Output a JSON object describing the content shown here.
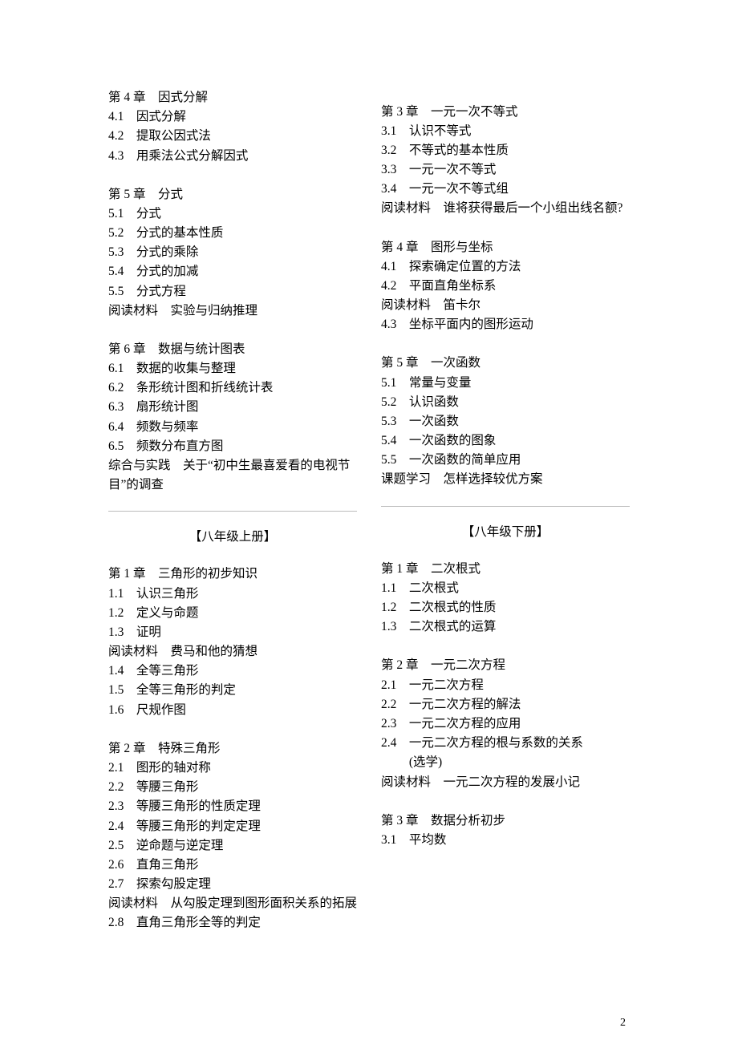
{
  "left": {
    "ch4": {
      "title": "第 4 章　因式分解",
      "s1": "4.1　因式分解",
      "s2": "4.2　提取公因式法",
      "s3": "4.3　用乘法公式分解因式"
    },
    "ch5": {
      "title": "第 5 章　分式",
      "s1": "5.1　分式",
      "s2": "5.2　分式的基本性质",
      "s3": "5.3　分式的乘除",
      "s4": "5.4　分式的加减",
      "s5": "5.5　分式方程",
      "reading": "阅读材料　实验与归纳推理"
    },
    "ch6": {
      "title": "第 6 章　数据与统计图表",
      "s1": "6.1　数据的收集与整理",
      "s2": "6.2　条形统计图和折线统计表",
      "s3": "6.3　扇形统计图",
      "s4": "6.4　频数与频率",
      "s5": "6.5　频数分布直方图",
      "practice": "综合与实践　关于“初中生最喜爱看的电视节目”的调查"
    },
    "volumeA": "【八年级上册】",
    "ch1a": {
      "title": "第 1 章　三角形的初步知识",
      "s1": "1.1　认识三角形",
      "s2": "1.2　定义与命题",
      "s3": "1.3　证明",
      "reading": "阅读材料　费马和他的猜想",
      "s4": "1.4　全等三角形",
      "s5": "1.5　全等三角形的判定",
      "s6": "1.6　尺规作图"
    },
    "ch2a": {
      "title": "第 2 章　特殊三角形",
      "s1": "2.1　图形的轴对称",
      "s2": "2.2　等腰三角形",
      "s3": "2.3　等腰三角形的性质定理",
      "s4": "2.4　等腰三角形的判定定理",
      "s5": "2.5　逆命题与逆定理",
      "s6": "2.6　直角三角形",
      "s7": "2.7　探索勾股定理"
    }
  },
  "right": {
    "ch2a_cont": {
      "reading": "阅读材料　从勾股定理到图形面积关系的拓展",
      "s8": "2.8　直角三角形全等的判定"
    },
    "ch3a": {
      "title": "第 3 章　一元一次不等式",
      "s1": "3.1　认识不等式",
      "s2": "3.2　不等式的基本性质",
      "s3": "3.3　一元一次不等式",
      "s4": "3.4　一元一次不等式组",
      "reading": "阅读材料　谁将获得最后一个小组出线名额?"
    },
    "ch4a": {
      "title": "第 4 章　图形与坐标",
      "s1": "4.1　探索确定位置的方法",
      "s2": "4.2　平面直角坐标系",
      "reading": "阅读材料　笛卡尔",
      "s3": "4.3　坐标平面内的图形运动"
    },
    "ch5a": {
      "title": "第 5 章　一次函数",
      "s1": "5.1　常量与变量",
      "s2": "5.2　认识函数",
      "s3": "5.3　一次函数",
      "s4": "5.4　一次函数的图象",
      "s5": "5.5　一次函数的简单应用",
      "topic": "课题学习　怎样选择较优方案"
    },
    "volumeB": "【八年级下册】",
    "ch1b": {
      "title": "第 1 章　二次根式",
      "s1": "1.1　二次根式",
      "s2": "1.2　二次根式的性质",
      "s3": "1.3　二次根式的运算"
    },
    "ch2b": {
      "title": "第 2 章　一元二次方程",
      "s1": "2.1　一元二次方程",
      "s2": "2.2　一元二次方程的解法",
      "s3": "2.3　一元二次方程的应用",
      "s4a": "2.4　一元二次方程的根与系数的关系",
      "s4b": "　　 (选学)",
      "reading": "阅读材料　一元二次方程的发展小记"
    },
    "ch3b": {
      "title": "第 3 章　数据分析初步",
      "s1": "3.1　平均数"
    }
  },
  "pageNumber": "2"
}
